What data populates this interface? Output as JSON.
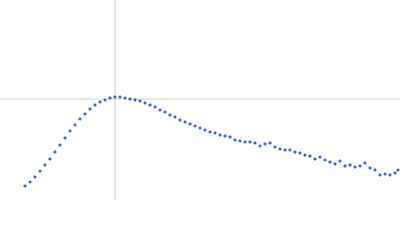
{
  "chart_data": {
    "type": "scatter",
    "x": [
      25,
      30,
      35,
      40,
      45,
      50,
      55,
      60,
      65,
      70,
      75,
      80,
      85,
      90,
      95,
      100,
      105,
      110,
      115,
      120,
      125,
      130,
      135,
      140,
      145,
      150,
      155,
      160,
      165,
      170,
      175,
      180,
      185,
      190,
      195,
      200,
      205,
      210,
      215,
      220,
      225,
      230,
      235,
      240,
      245,
      250,
      255,
      260,
      265,
      270,
      275,
      280,
      285,
      290,
      295,
      300,
      305,
      310,
      315,
      320,
      325,
      330,
      335,
      340,
      345,
      350,
      355,
      360,
      365,
      370,
      375,
      380,
      385,
      390,
      395,
      398
    ],
    "series": [
      {
        "color": "#3a66b0",
        "values": [
          14,
          18,
          23,
          29,
          35,
          41,
          48,
          55,
          62,
          69,
          75,
          81,
          86,
          91,
          95,
          98,
          100,
          102,
          103,
          103,
          102,
          101,
          100,
          99,
          97,
          95,
          93,
          90,
          88,
          85,
          83,
          80,
          78,
          76,
          74,
          72,
          70,
          68,
          67,
          65,
          64,
          63,
          60,
          59,
          58,
          58,
          57,
          54,
          56,
          57,
          53,
          51,
          50,
          50,
          48,
          47,
          45,
          44,
          41,
          43,
          40,
          38,
          36,
          39,
          34,
          35,
          33,
          34,
          37,
          32,
          30,
          25,
          26,
          25,
          27,
          30
        ]
      }
    ],
    "xlim": [
      0,
      400
    ],
    "ylim": [
      0,
      200
    ],
    "reference_lines": {
      "color": "#d0d0d0",
      "x": 115,
      "y": 101
    }
  }
}
